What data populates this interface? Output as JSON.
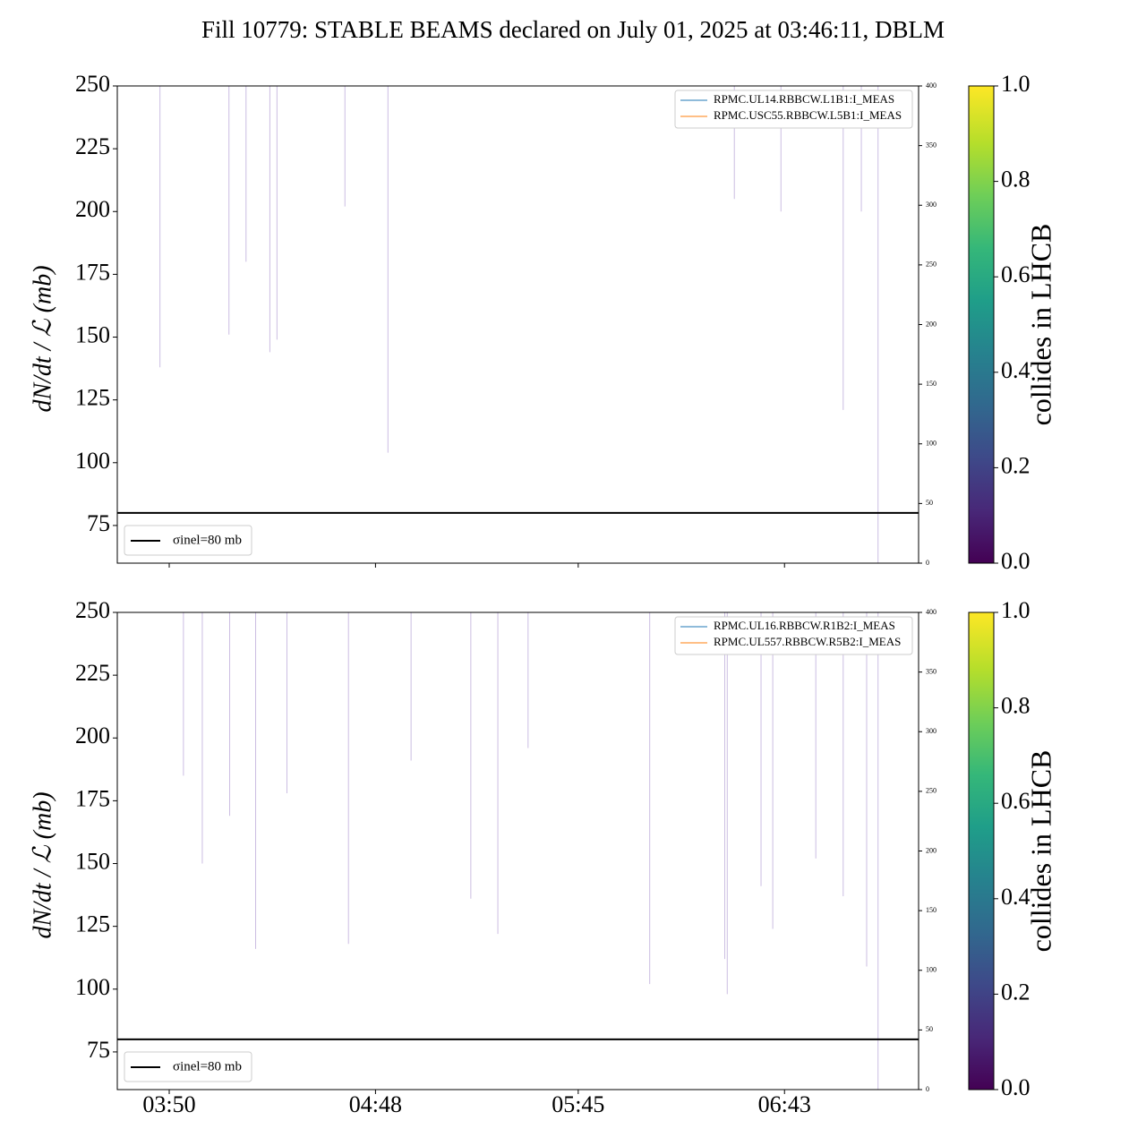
{
  "title": "Fill 10779: STABLE BEAMS declared on July 01, 2025 at 03:46:11, DBLM",
  "chart_data": [
    {
      "type": "line",
      "ylabel": "dN/dt / ℒ (mb)",
      "ylim": [
        60,
        250
      ],
      "yticks": [
        75,
        100,
        125,
        150,
        175,
        200,
        225,
        250
      ],
      "y2lim": [
        0,
        400
      ],
      "y2ticks": [
        0,
        50,
        100,
        150,
        200,
        250,
        300,
        350,
        400
      ],
      "xlim": [
        215.4,
        440.7
      ],
      "series": [
        {
          "name": "RPMC.UL14.RBBCW.L1B1:I_MEAS",
          "color": "#1f77b4",
          "axis": "y2",
          "x": [
            226,
            430
          ],
          "values": [
            0,
            0
          ]
        },
        {
          "name": "RPMC.USC55.RBBCW.L5B1:I_MEAS",
          "color": "#ff7f0e",
          "axis": "y2",
          "x": [
            226,
            430
          ],
          "values": [
            0,
            0
          ]
        }
      ],
      "spikes": {
        "color": "#cbbde2",
        "x": [
          227.4,
          246.8,
          251.6,
          258.3,
          260.3,
          279.4,
          291.5,
          388.9,
          402.0,
          419.5,
          424.6,
          429.3
        ],
        "values": [
          138,
          151,
          180,
          144,
          149,
          202,
          104,
          205,
          200,
          121,
          200,
          60
        ]
      },
      "hline": {
        "value": 80,
        "label": "σinel=80 mb",
        "color": "#000000"
      },
      "colorbar": {
        "label": "collides in LHCB",
        "lim": [
          0,
          1
        ],
        "ticks": [
          {
            "value": 0,
            "label": "0.0"
          },
          0.2,
          0.4,
          0.6,
          0.8,
          {
            "value": 1,
            "label": "1.0"
          }
        ]
      }
    },
    {
      "type": "line",
      "ylabel": "dN/dt / ℒ (mb)",
      "ylim": [
        60,
        250
      ],
      "yticks": [
        75,
        100,
        125,
        150,
        175,
        200,
        225,
        250
      ],
      "y2lim": [
        0,
        400
      ],
      "y2ticks": [
        0,
        50,
        100,
        150,
        200,
        250,
        300,
        350,
        400
      ],
      "xlim": [
        215.4,
        440.7
      ],
      "xticks": [
        {
          "value": 230,
          "label": "03:50"
        },
        {
          "value": 288,
          "label": "04:48"
        },
        {
          "value": 345,
          "label": "05:45"
        },
        {
          "value": 403,
          "label": "06:43"
        }
      ],
      "series": [
        {
          "name": "RPMC.UL16.RBBCW.R1B2:I_MEAS",
          "color": "#1f77b4",
          "axis": "y2",
          "x": [
            226,
            430
          ],
          "values": [
            0,
            0
          ]
        },
        {
          "name": "RPMC.UL557.RBBCW.R5B2:I_MEAS",
          "color": "#ff7f0e",
          "axis": "y2",
          "x": [
            226,
            430
          ],
          "values": [
            0,
            0
          ]
        }
      ],
      "spikes": {
        "color": "#cbbde2",
        "x": [
          234.0,
          239.3,
          247.0,
          254.3,
          263.1,
          280.4,
          298.0,
          314.8,
          322.4,
          330.9,
          365.1,
          386.2,
          386.9,
          396.4,
          399.7,
          411.8,
          419.5,
          426.1,
          429.3
        ],
        "values": [
          185,
          150,
          169,
          116,
          178,
          118,
          191,
          136,
          122,
          196,
          102,
          112,
          98,
          141,
          124,
          152,
          137,
          109,
          60
        ]
      },
      "hline": {
        "value": 80,
        "label": "σinel=80 mb",
        "color": "#000000"
      },
      "colorbar": {
        "label": "collides in LHCB",
        "lim": [
          0,
          1
        ],
        "ticks": [
          {
            "value": 0,
            "label": "0.0"
          },
          0.2,
          0.4,
          0.6,
          0.8,
          {
            "value": 1,
            "label": "1.0"
          }
        ]
      }
    }
  ]
}
